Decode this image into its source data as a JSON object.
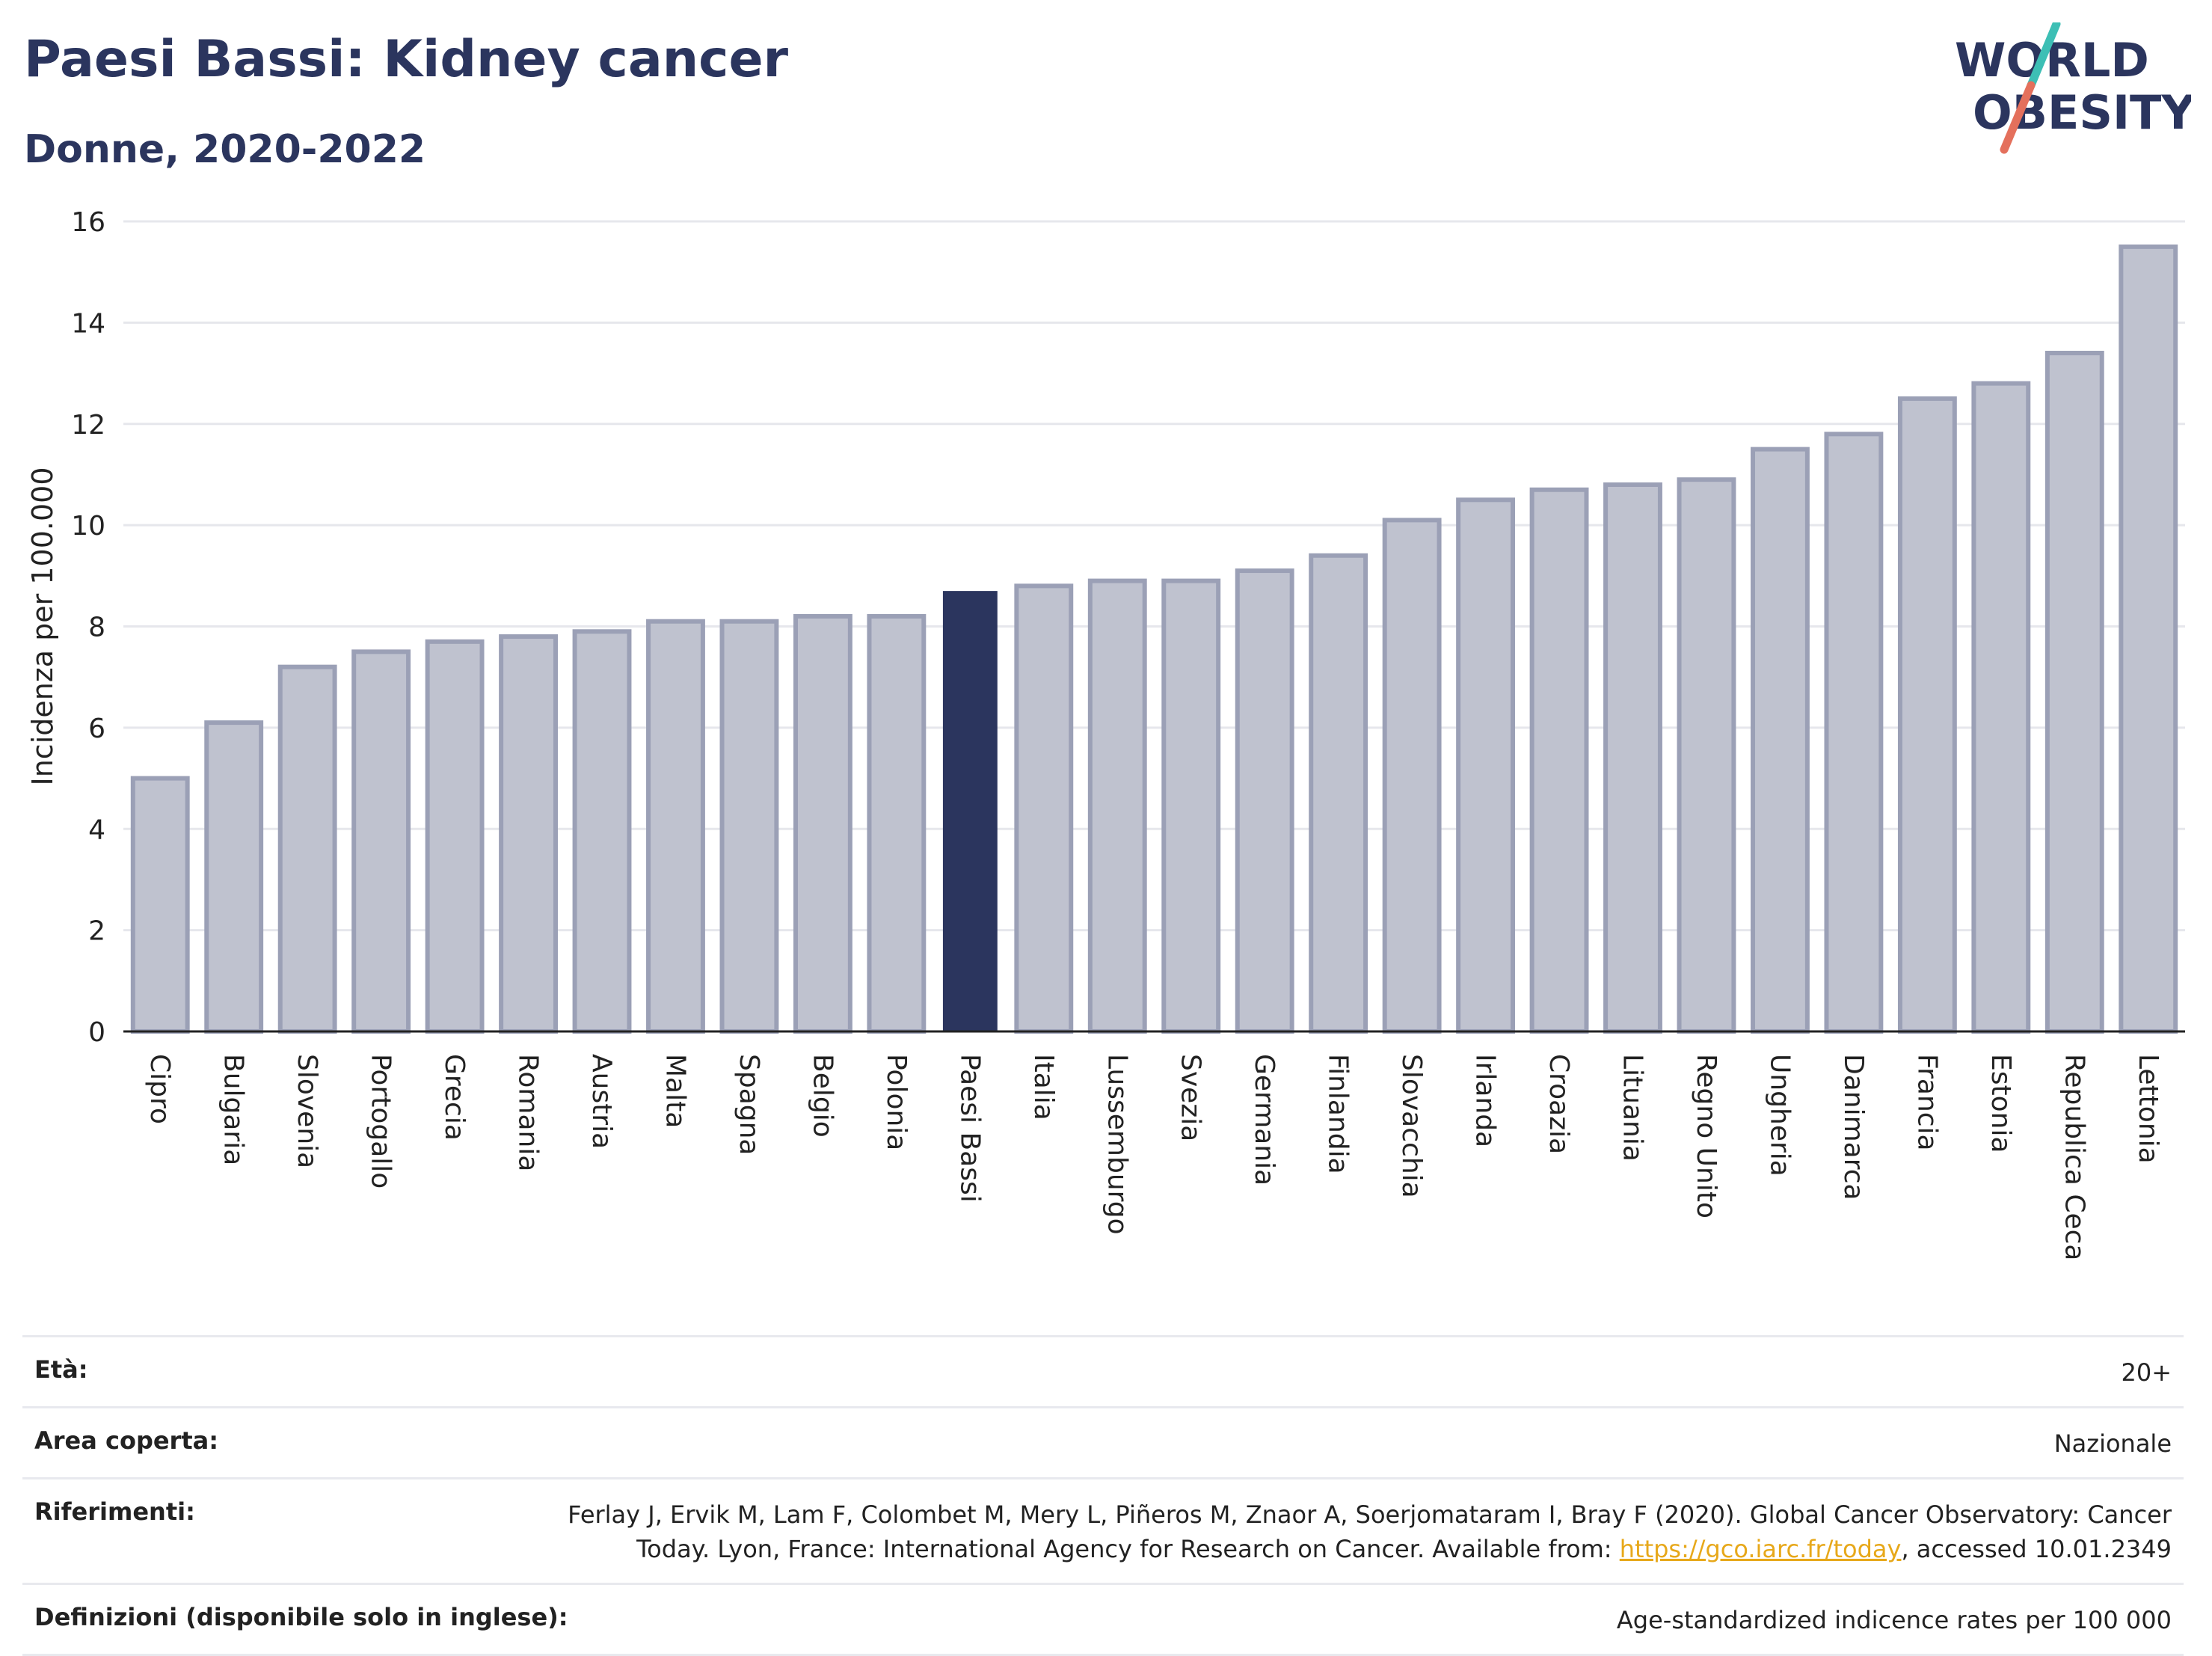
{
  "header": {
    "title": "Paesi Bassi: Kidney cancer",
    "subtitle": "Donne, 2020-2022"
  },
  "logo": {
    "line1": "WORLD",
    "line2": "OBESITY",
    "colors": {
      "text": "#2b355e",
      "slash_top": "#3dbfb5",
      "slash_bottom": "#e4705c"
    }
  },
  "chart_data": {
    "type": "bar",
    "title": "Paesi Bassi: Kidney cancer",
    "subtitle": "Donne, 2020-2022",
    "ylabel": "Incidenza per 100.000",
    "xlabel": "",
    "ylim": [
      0,
      16
    ],
    "yticks": [
      0,
      2,
      4,
      6,
      8,
      10,
      12,
      14,
      16
    ],
    "grid": true,
    "highlight": "Paesi Bassi",
    "colors": {
      "bar": "#bfc2cf",
      "bar_edge": "#9ba0b6",
      "highlight": "#2b355e"
    },
    "categories": [
      "Cipro",
      "Bulgaria",
      "Slovenia",
      "Portogallo",
      "Grecia",
      "Romania",
      "Austria",
      "Malta",
      "Spagna",
      "Belgio",
      "Polonia",
      "Paesi Bassi",
      "Italia",
      "Lussemburgo",
      "Svezia",
      "Germania",
      "Finlandia",
      "Slovacchia",
      "Irlanda",
      "Croazia",
      "Lituania",
      "Regno Unito",
      "Ungheria",
      "Danimarca",
      "Francia",
      "Estonia",
      "Republica Ceca",
      "Lettonia"
    ],
    "values": [
      5.0,
      6.1,
      7.2,
      7.5,
      7.7,
      7.8,
      7.9,
      8.1,
      8.1,
      8.2,
      8.2,
      8.7,
      8.8,
      8.9,
      8.9,
      9.1,
      9.4,
      10.1,
      10.5,
      10.7,
      10.8,
      10.9,
      11.5,
      11.8,
      12.5,
      12.8,
      13.4,
      15.5
    ]
  },
  "meta": {
    "age_label": "Età:",
    "age_value": "20+",
    "area_label": "Area coperta:",
    "area_value": "Nazionale",
    "ref_label": "Riferimenti:",
    "ref_text_line1": "Ferlay J, Ervik M, Lam F, Colombet M, Mery L, Piñeros M, Znaor A, Soerjomataram I, Bray F (2020). Global Cancer Observatory: Cancer",
    "ref_text_line2_pre": "Today. Lyon, France: International Agency for Research on Cancer. Available from: ",
    "ref_link": "https://gco.iarc.fr/today",
    "ref_text_line2_post": ", accessed 10.01.2349",
    "def_label": "Definizioni (disponibile solo in inglese):",
    "def_value": "Age-standardized indicence rates per 100 000"
  }
}
